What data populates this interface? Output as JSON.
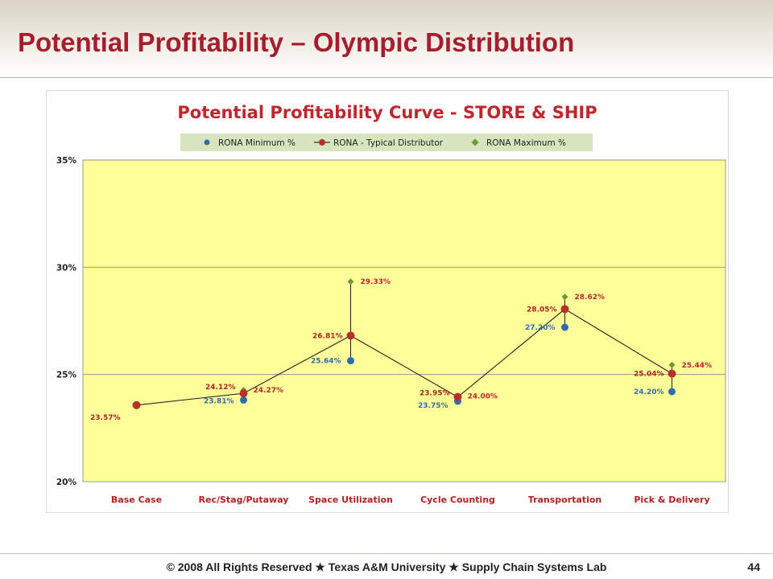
{
  "slide": {
    "title": "Potential Profitability – Olympic Distribution",
    "footer": "© 2008 All Rights Reserved  ★  Texas A&M University  ★  Supply Chain Systems Lab",
    "page_number": "44"
  },
  "colors": {
    "title_red": "#a51e2d",
    "chart_title_red": "#c0262d",
    "plot_fill": "#ffff99",
    "legend_fill": "#d7e4bd",
    "series_min": "#2e6cb3",
    "series_typical": "#b9302b",
    "series_max": "#6b9a2f"
  },
  "chart_data": {
    "type": "line",
    "title": "Potential Profitability Curve - STORE & SHIP",
    "categories": [
      "Base Case",
      "Rec/Stag/Putaway",
      "Space Utilization",
      "Cycle Counting",
      "Transportation",
      "Pick & Delivery"
    ],
    "y_ticks": [
      "20%",
      "25%",
      "30%",
      "35%"
    ],
    "ylim": [
      20,
      35
    ],
    "grid": true,
    "legend_position": "top",
    "series": [
      {
        "name": "RONA Minimum %",
        "values": [
          23.57,
          23.81,
          25.64,
          23.75,
          27.2,
          24.2
        ],
        "labels": [
          "",
          "23.81%",
          "25.64%",
          "23.75%",
          "27.20%",
          "24.20%"
        ]
      },
      {
        "name": "RONA - Typical Distributor",
        "values": [
          23.57,
          24.12,
          26.81,
          23.95,
          28.05,
          25.04
        ],
        "labels": [
          "23.57%",
          "24.12%",
          "26.81%",
          "23.95%",
          "28.05%",
          "25.04%"
        ]
      },
      {
        "name": "RONA Maximum %",
        "values": [
          23.57,
          24.27,
          29.33,
          24.0,
          28.62,
          25.44
        ],
        "labels": [
          "",
          "24.27%",
          "29.33%",
          "24.00%",
          "28.62%",
          "25.44%"
        ]
      }
    ]
  }
}
